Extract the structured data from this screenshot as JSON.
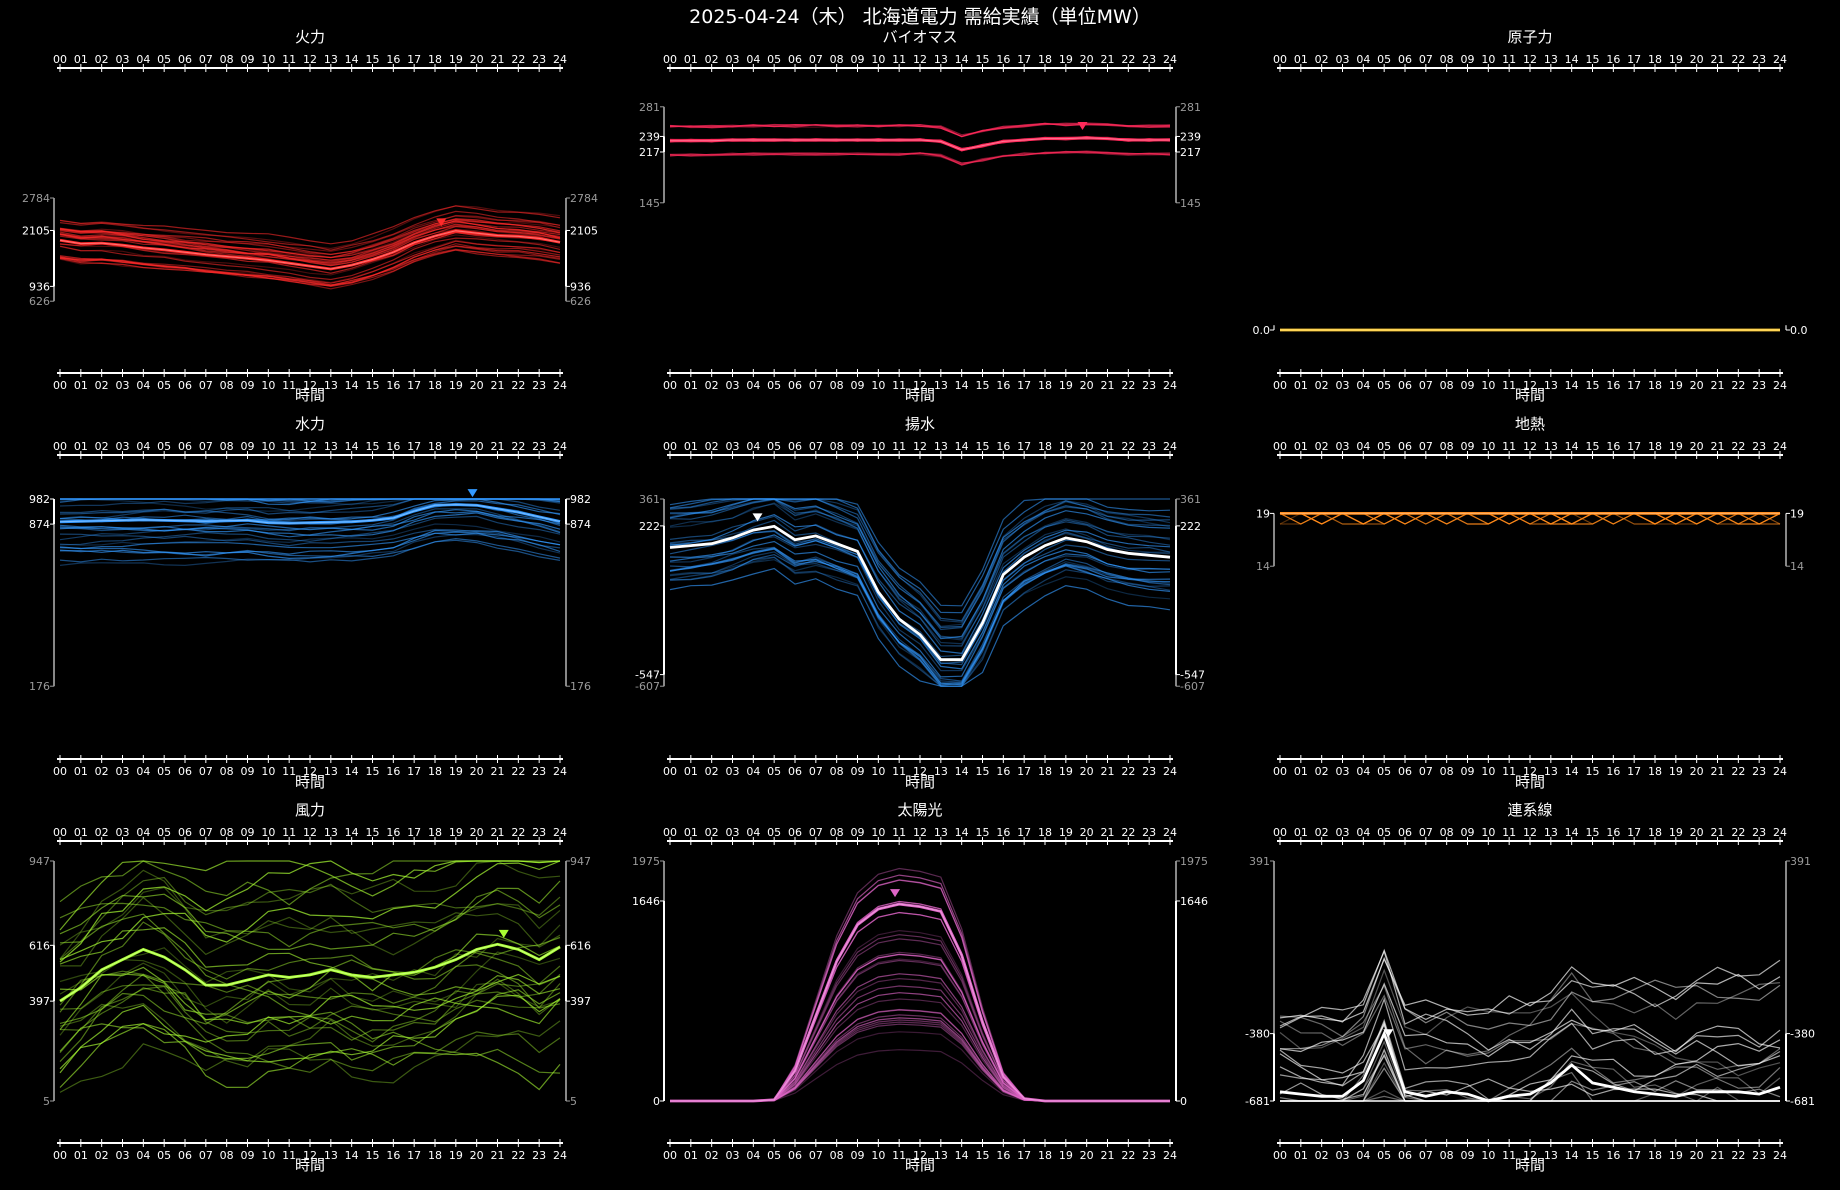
{
  "page_title": "2025-04-24（木） 北海道電力 需給実績（単位MW）",
  "x_label": "時間",
  "hour_ticks": [
    "00",
    "01",
    "02",
    "03",
    "04",
    "05",
    "06",
    "07",
    "08",
    "09",
    "10",
    "11",
    "12",
    "13",
    "14",
    "15",
    "16",
    "17",
    "18",
    "19",
    "20",
    "21",
    "22",
    "23",
    "24"
  ],
  "chart_data": [
    {
      "type": "line",
      "title": "火力",
      "color": "#ff2a2a",
      "ylim": [
        626,
        2784
      ],
      "y_ticks_outer": [
        "2784",
        "626"
      ],
      "y_ticks_inner": [
        "2105",
        "936"
      ],
      "peak_hour": 18.3,
      "today": [
        1900,
        1830,
        1840,
        1800,
        1740,
        1700,
        1650,
        1600,
        1560,
        1520,
        1480,
        1420,
        1360,
        1300,
        1380,
        1500,
        1650,
        1850,
        1990,
        2100,
        2050,
        2000,
        1980,
        1940,
        1860
      ],
      "history_count": 30
    },
    {
      "type": "line",
      "title": "バイオマス",
      "color": "#ff2a5a",
      "ylim": [
        145,
        281
      ],
      "y_ticks_outer": [
        "281",
        "145"
      ],
      "y_ticks_inner": [
        "239",
        "217"
      ],
      "peak_hour": 19.8,
      "today": [
        233,
        233,
        233,
        234,
        234,
        234,
        234,
        234,
        234,
        234,
        234,
        234,
        234,
        232,
        220,
        226,
        232,
        234,
        236,
        236,
        237,
        236,
        234,
        234,
        234
      ],
      "history_count": 30
    },
    {
      "type": "line",
      "title": "原子力",
      "color": "#ffcc33",
      "ylim": [
        0,
        1
      ],
      "y_ticks_outer": [],
      "y_ticks_inner": [
        "0.0"
      ],
      "peak_hour": null,
      "today": [
        0,
        0,
        0,
        0,
        0,
        0,
        0,
        0,
        0,
        0,
        0,
        0,
        0,
        0,
        0,
        0,
        0,
        0,
        0,
        0,
        0,
        0,
        0,
        0,
        0
      ],
      "history_count": 0
    },
    {
      "type": "line",
      "title": "水力",
      "color": "#3399ff",
      "ylim": [
        176,
        982
      ],
      "y_ticks_outer": [
        "176"
      ],
      "y_ticks_inner": [
        "982",
        "874"
      ],
      "peak_hour": 19.8,
      "today": [
        884,
        886,
        888,
        890,
        892,
        890,
        888,
        886,
        888,
        890,
        880,
        878,
        880,
        882,
        884,
        890,
        900,
        930,
        955,
        958,
        955,
        940,
        925,
        905,
        885
      ],
      "history_count": 30
    },
    {
      "type": "line",
      "title": "揚水",
      "color": "#3399ff",
      "ylim": [
        -607,
        361
      ],
      "y_ticks_outer": [
        "361",
        "-607"
      ],
      "y_ticks_inner": [
        "222",
        "-547"
      ],
      "peak_hour": 4.2,
      "today": [
        110,
        120,
        130,
        160,
        200,
        220,
        150,
        170,
        130,
        90,
        -120,
        -260,
        -340,
        -470,
        -470,
        -280,
        -30,
        60,
        120,
        160,
        140,
        100,
        80,
        70,
        60
      ],
      "history_count": 30
    },
    {
      "type": "line",
      "title": "地熱",
      "color": "#ff8a1a",
      "ylim": [
        14,
        19
      ],
      "y_ticks_outer": [
        "14"
      ],
      "y_ticks_inner": [
        "19"
      ],
      "peak_hour": null,
      "today": [
        19,
        19,
        19,
        19,
        19,
        19,
        19,
        19,
        19,
        19,
        19,
        19,
        19,
        19,
        19,
        19,
        19,
        19,
        19,
        19,
        19,
        19,
        19,
        19,
        19
      ],
      "history_count": 20
    },
    {
      "type": "line",
      "title": "風力",
      "color": "#aaff33",
      "ylim": [
        5,
        947
      ],
      "y_ticks_outer": [
        "947",
        "5"
      ],
      "y_ticks_inner": [
        "616",
        "397"
      ],
      "peak_hour": 21.3,
      "today": [
        397,
        450,
        520,
        560,
        600,
        570,
        520,
        460,
        460,
        480,
        500,
        490,
        500,
        520,
        500,
        490,
        500,
        510,
        530,
        560,
        600,
        620,
        600,
        560,
        610
      ],
      "history_count": 30
    },
    {
      "type": "line",
      "title": "太陽光",
      "color": "#e066c8",
      "ylim": [
        0,
        1975
      ],
      "y_ticks_outer": [
        "1975"
      ],
      "y_ticks_inner": [
        "1646",
        "0"
      ],
      "peak_hour": 10.8,
      "today": [
        0,
        0,
        0,
        0,
        0,
        10,
        250,
        700,
        1150,
        1450,
        1580,
        1620,
        1600,
        1560,
        1200,
        650,
        200,
        20,
        0,
        0,
        0,
        0,
        0,
        0,
        0
      ],
      "history_count": 30
    },
    {
      "type": "line",
      "title": "連系線",
      "color": "#ffffff",
      "ylim": [
        -681,
        391
      ],
      "y_ticks_outer": [
        "391"
      ],
      "y_ticks_inner": [
        "-380",
        "-681"
      ],
      "peak_hour": 5.2,
      "today": [
        -640,
        -650,
        -660,
        -660,
        -590,
        -380,
        -640,
        -660,
        -640,
        -650,
        -680,
        -660,
        -650,
        -600,
        -520,
        -600,
        -620,
        -640,
        -650,
        -660,
        -640,
        -640,
        -640,
        -650,
        -620
      ],
      "history_count": 30
    }
  ]
}
